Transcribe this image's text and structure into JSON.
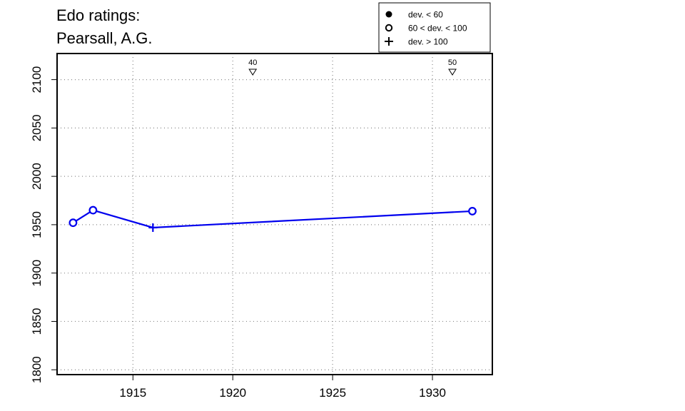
{
  "title_lines": [
    "Edo ratings:",
    "Pearsall, A.G."
  ],
  "chart_data": {
    "type": "line",
    "title": "Edo ratings: Pearsall, A.G.",
    "xlabel": "",
    "ylabel": "",
    "xlim": [
      1911.2,
      1933.0
    ],
    "ylim": [
      1795,
      2127
    ],
    "xticks": [
      1915,
      1920,
      1925,
      1930
    ],
    "yticks": [
      1800,
      1850,
      1900,
      1950,
      2000,
      2050,
      2100
    ],
    "grid": true,
    "line_color": "#0000ee",
    "series": [
      {
        "x": [
          1912,
          1913,
          1916,
          1932
        ],
        "y": [
          1952,
          1965,
          1947,
          1964
        ],
        "markers": [
          "open-circle",
          "open-circle",
          "plus",
          "open-circle"
        ]
      }
    ],
    "annotations": [
      {
        "x": 1921,
        "label": "40",
        "marker": "down-triangle"
      },
      {
        "x": 1931,
        "label": "50",
        "marker": "down-triangle"
      }
    ],
    "legend": {
      "position": "top-right",
      "entries": [
        {
          "marker": "filled-circle",
          "label": "dev. < 60"
        },
        {
          "marker": "open-circle",
          "label": "60 < dev. < 100"
        },
        {
          "marker": "plus",
          "label": "dev. > 100"
        }
      ]
    }
  }
}
